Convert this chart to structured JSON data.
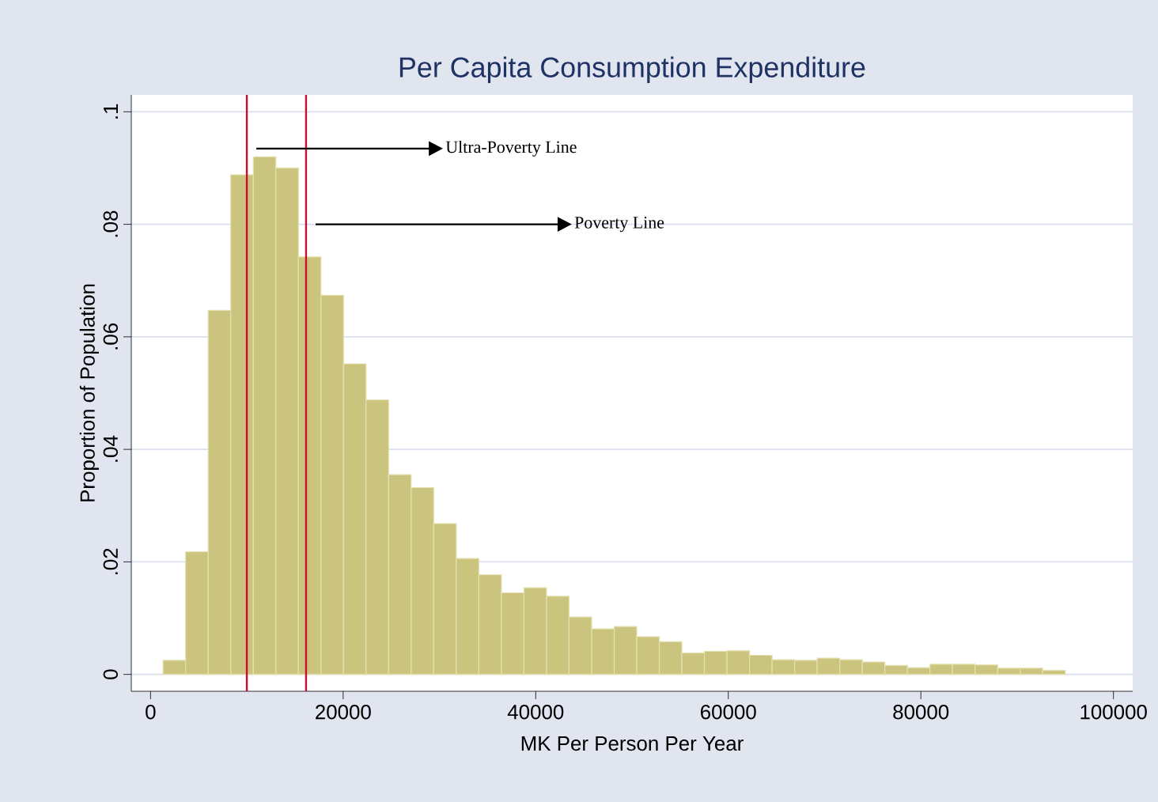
{
  "chart_data": {
    "type": "histogram",
    "title": "Per Capita Consumption Expenditure",
    "xlabel": "MK Per Person Per Year",
    "ylabel": "Proportion of Population",
    "bins": [
      1300,
      3642.5,
      5985,
      8327.5,
      10670,
      13012.5,
      15355,
      17697.5,
      20040,
      22382.5,
      24725,
      27067.5,
      29410,
      31752.5,
      34095,
      36437.5,
      38780,
      41122.5,
      43465,
      45807.5,
      48150,
      50492.5,
      52835,
      55177.5,
      57520,
      59862.5,
      62205,
      64547.5,
      66890,
      69232.5,
      71575,
      73917.5,
      76260,
      78602.5,
      80945,
      83287.5,
      85630,
      87972.5,
      90315,
      92657.5,
      95000
    ],
    "values": [
      0.0025,
      0.0218,
      0.0647,
      0.0888,
      0.092,
      0.09,
      0.0742,
      0.0674,
      0.0552,
      0.0488,
      0.0355,
      0.0332,
      0.0268,
      0.0206,
      0.0177,
      0.0145,
      0.0154,
      0.0139,
      0.0102,
      0.0081,
      0.0085,
      0.0067,
      0.0058,
      0.0038,
      0.0041,
      0.0042,
      0.0034,
      0.0026,
      0.0025,
      0.0029,
      0.0026,
      0.0022,
      0.0016,
      0.0012,
      0.0018,
      0.0018,
      0.0017,
      0.0011,
      0.0011,
      0.0007
    ],
    "color": "#cbc47e",
    "xlim": [
      -2000,
      102000
    ],
    "xticks": [
      0,
      20000,
      40000,
      60000,
      80000,
      100000
    ],
    "ylim": [
      -0.003,
      0.103
    ],
    "yticks": [
      0,
      {
        "value": 0.02,
        "label": ".02"
      },
      {
        "value": 0.04,
        "label": ".04"
      },
      {
        "value": 0.06,
        "label": ".06"
      },
      {
        "value": 0.08,
        "label": ".08"
      },
      {
        "value": 0.1,
        "label": ".1"
      }
    ],
    "grid": "y",
    "ref_lines": [
      {
        "axis": "x",
        "value": 10000,
        "color": "#c8102e"
      },
      {
        "axis": "x",
        "value": 16150,
        "color": "#c8102e"
      }
    ],
    "annotations": [
      "Ultra-Poverty Line",
      "Poverty Line"
    ]
  }
}
